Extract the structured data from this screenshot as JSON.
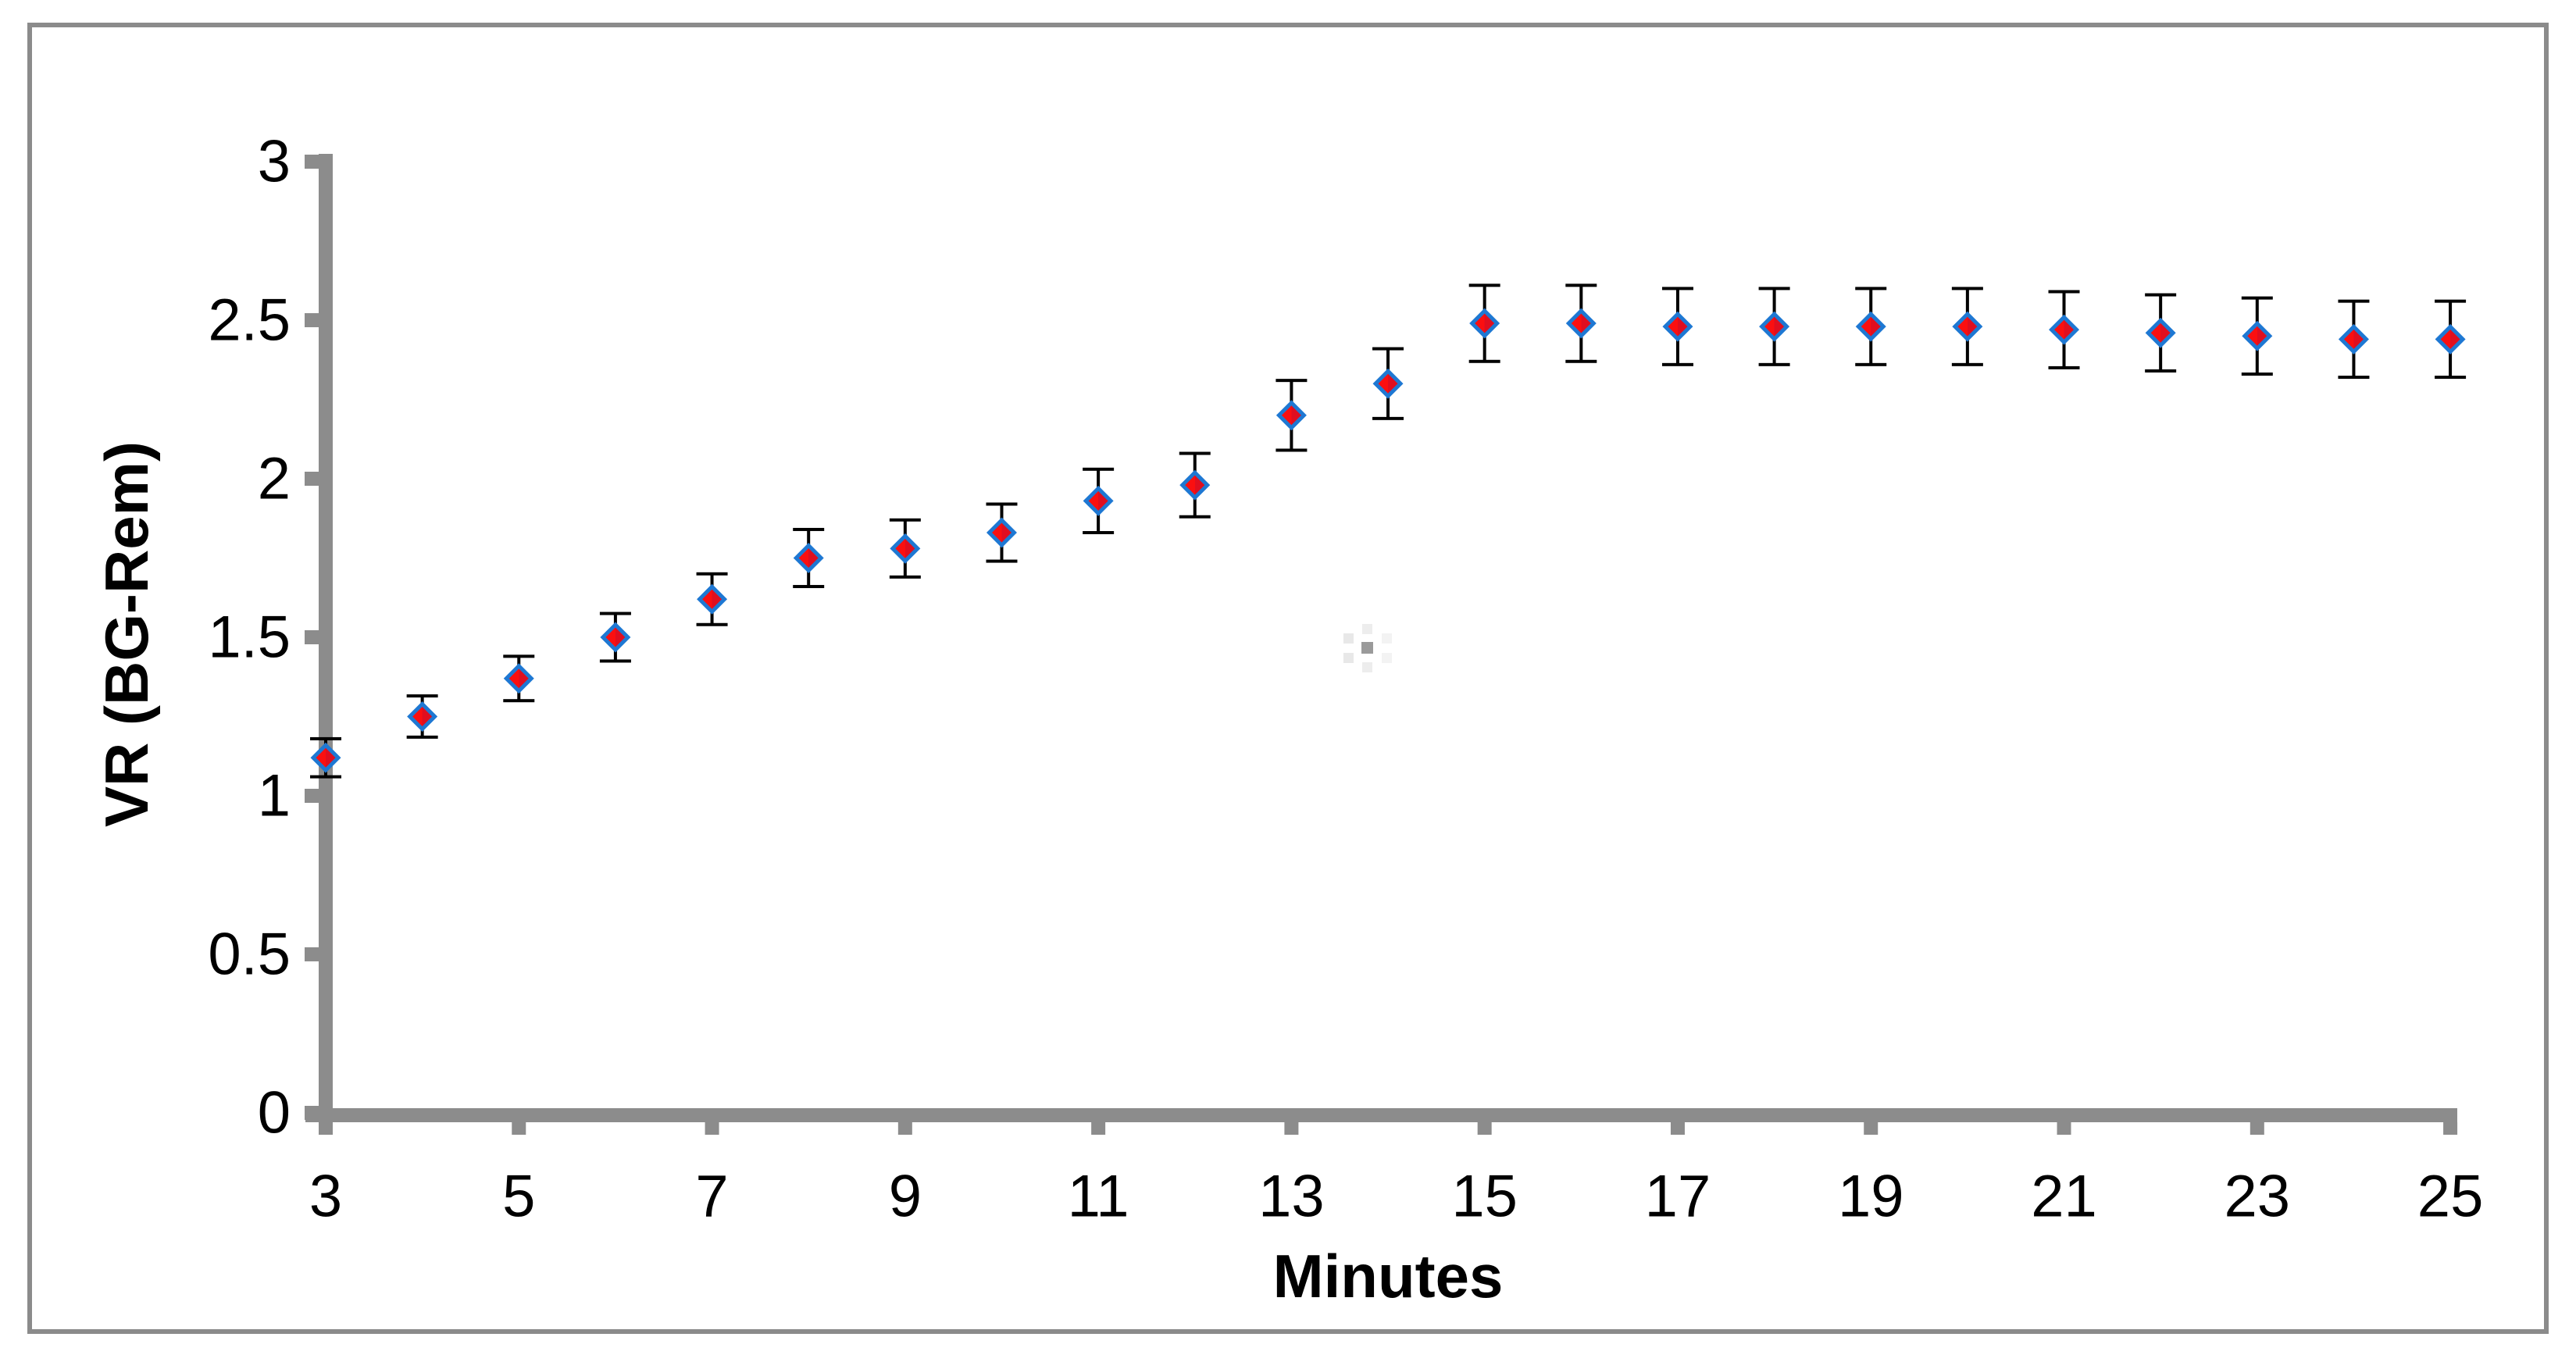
{
  "figure": {
    "background": "#ffffff",
    "border_color": "#8b8b8b"
  },
  "chart_data": {
    "type": "scatter",
    "title": "",
    "xlabel": "Minutes",
    "ylabel": "VR (BG-Rem)",
    "x": [
      3,
      4,
      5,
      6,
      7,
      8,
      9,
      10,
      11,
      12,
      13,
      14,
      15,
      16,
      17,
      18,
      19,
      20,
      21,
      22,
      23,
      24,
      25
    ],
    "series": [
      {
        "name": "VR (BG-Rem)",
        "values": [
          1.12,
          1.25,
          1.37,
          1.5,
          1.62,
          1.75,
          1.78,
          1.83,
          1.93,
          1.98,
          2.2,
          2.3,
          2.49,
          2.49,
          2.48,
          2.48,
          2.48,
          2.48,
          2.47,
          2.46,
          2.45,
          2.44,
          2.44
        ],
        "error_bars": [
          0.06,
          0.065,
          0.07,
          0.075,
          0.08,
          0.09,
          0.09,
          0.09,
          0.1,
          0.1,
          0.11,
          0.11,
          0.12,
          0.12,
          0.12,
          0.12,
          0.12,
          0.12,
          0.12,
          0.12,
          0.12,
          0.12,
          0.12
        ]
      }
    ],
    "x_ticks": [
      3,
      5,
      7,
      9,
      11,
      13,
      15,
      17,
      19,
      21,
      23,
      25
    ],
    "y_ticks": [
      0,
      0.5,
      1,
      1.5,
      2,
      2.5,
      3
    ],
    "xlim": [
      3,
      25
    ],
    "ylim": [
      0,
      3
    ],
    "grid": false,
    "legend": false,
    "marker": {
      "shape": "diamond",
      "outline": "#1e78d3",
      "fill": "#ee1019",
      "fill_left": "#fb0f10",
      "fill_right": "#e00e1f"
    },
    "colors": {
      "axis": "#8c8c8c",
      "error_bar": "#000000",
      "text": "#000000"
    }
  }
}
